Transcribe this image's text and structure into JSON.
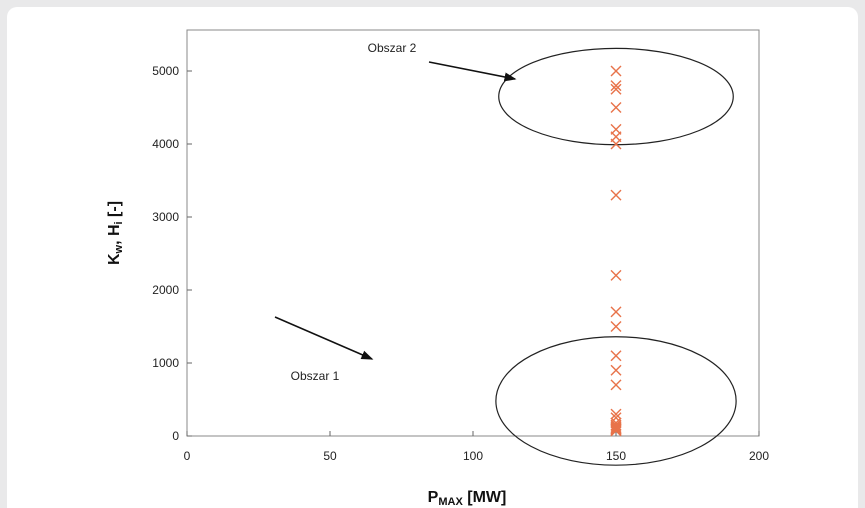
{
  "chart_data": {
    "type": "scatter",
    "title": "",
    "xlabel": {
      "main": "P",
      "sub": "MAX",
      "rest": " [MW]"
    },
    "ylabel": {
      "a": "K",
      "a_sub": "w",
      "mid": ", H",
      "b_sub": "i",
      "rest": " [-]"
    },
    "xlim": [
      0,
      200
    ],
    "ylim": [
      0,
      5400
    ],
    "xticks": [
      0,
      50,
      100,
      150,
      200
    ],
    "yticks": [
      0,
      1000,
      2000,
      3000,
      4000,
      5000
    ],
    "grid": false,
    "marker": "x",
    "series": [
      {
        "color": "#e8734a",
        "x": [
          150,
          150,
          150,
          150,
          150,
          150,
          150,
          150,
          150,
          150,
          150,
          150,
          150,
          150,
          150,
          150,
          150,
          150,
          150,
          150,
          150,
          150,
          150,
          150
        ],
        "y": [
          5000,
          4800,
          4750,
          4500,
          4200,
          4100,
          4000,
          3300,
          2200,
          1700,
          1500,
          1100,
          900,
          700,
          300,
          250,
          180,
          150,
          130,
          110,
          100,
          90,
          80,
          70
        ]
      }
    ],
    "annotations": [
      {
        "label": "Obszar 1",
        "ellipse": {
          "cx": 150,
          "cy": 480,
          "rx": 42,
          "ry": 880
        }
      },
      {
        "label": "Obszar 2",
        "ellipse": {
          "cx": 150,
          "cy": 4650,
          "rx": 41,
          "ry": 660
        }
      }
    ]
  }
}
